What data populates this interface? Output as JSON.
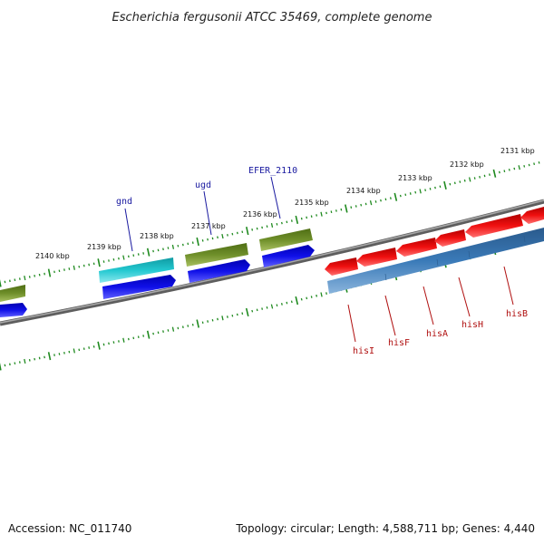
{
  "title": "Escherichia fergusonii ATCC 35469, complete genome",
  "footer": {
    "accession": "Accession: NC_011740",
    "summary": "Topology: circular; Length: 4,588,711 bp; Genes: 4,440"
  },
  "ruler": {
    "labels": [
      "2131 kbp",
      "2132 kbp",
      "2133 kbp",
      "2134 kbp",
      "2135 kbp",
      "2136 kbp",
      "2137 kbp",
      "2138 kbp",
      "2139 kbp",
      "2140 kbp"
    ]
  },
  "genes_top": [
    {
      "label": "EFER_2110"
    },
    {
      "label": "ugd"
    },
    {
      "label": "gnd"
    }
  ],
  "genes_bottom": [
    {
      "label": "hisB"
    },
    {
      "label": "hisH"
    },
    {
      "label": "hisA"
    },
    {
      "label": "hisF"
    },
    {
      "label": "hisI"
    }
  ],
  "colors": {
    "olive": "#6b8e23",
    "cyan": "#20c0c8",
    "blue": "#1010e0",
    "red": "#e81010",
    "steel": "#3a78b4",
    "backbone": "#808080",
    "ruler": "#1f8a1f"
  }
}
